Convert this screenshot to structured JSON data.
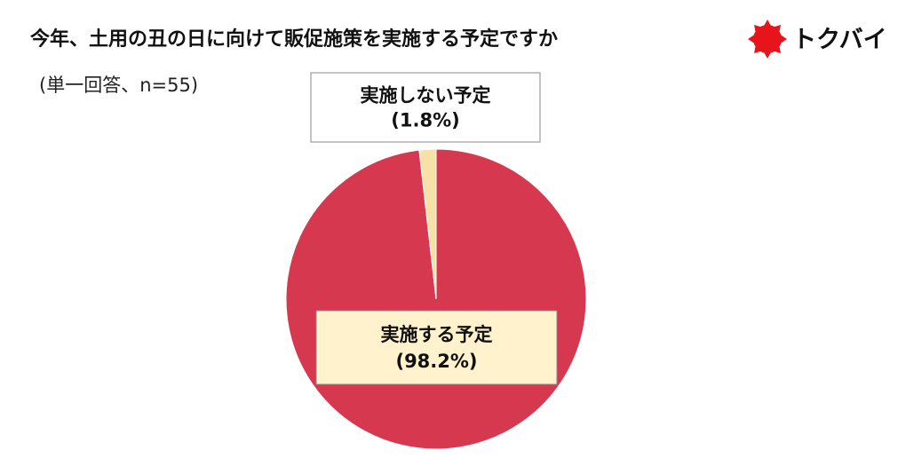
{
  "chart_data": {
    "type": "pie",
    "title": "今年、土用の丑の日に向けて販促施策を実施する予定ですか",
    "subtitle": "(単一回答、n=55)",
    "logo": "トクバイ",
    "categories": [
      "実施する予定",
      "実施しない予定"
    ],
    "values": [
      98.2,
      1.8
    ],
    "value_labels": [
      "(98.2%)",
      "(1.8%)"
    ],
    "colors": [
      "#d5384f",
      "#f6e2a6"
    ]
  }
}
